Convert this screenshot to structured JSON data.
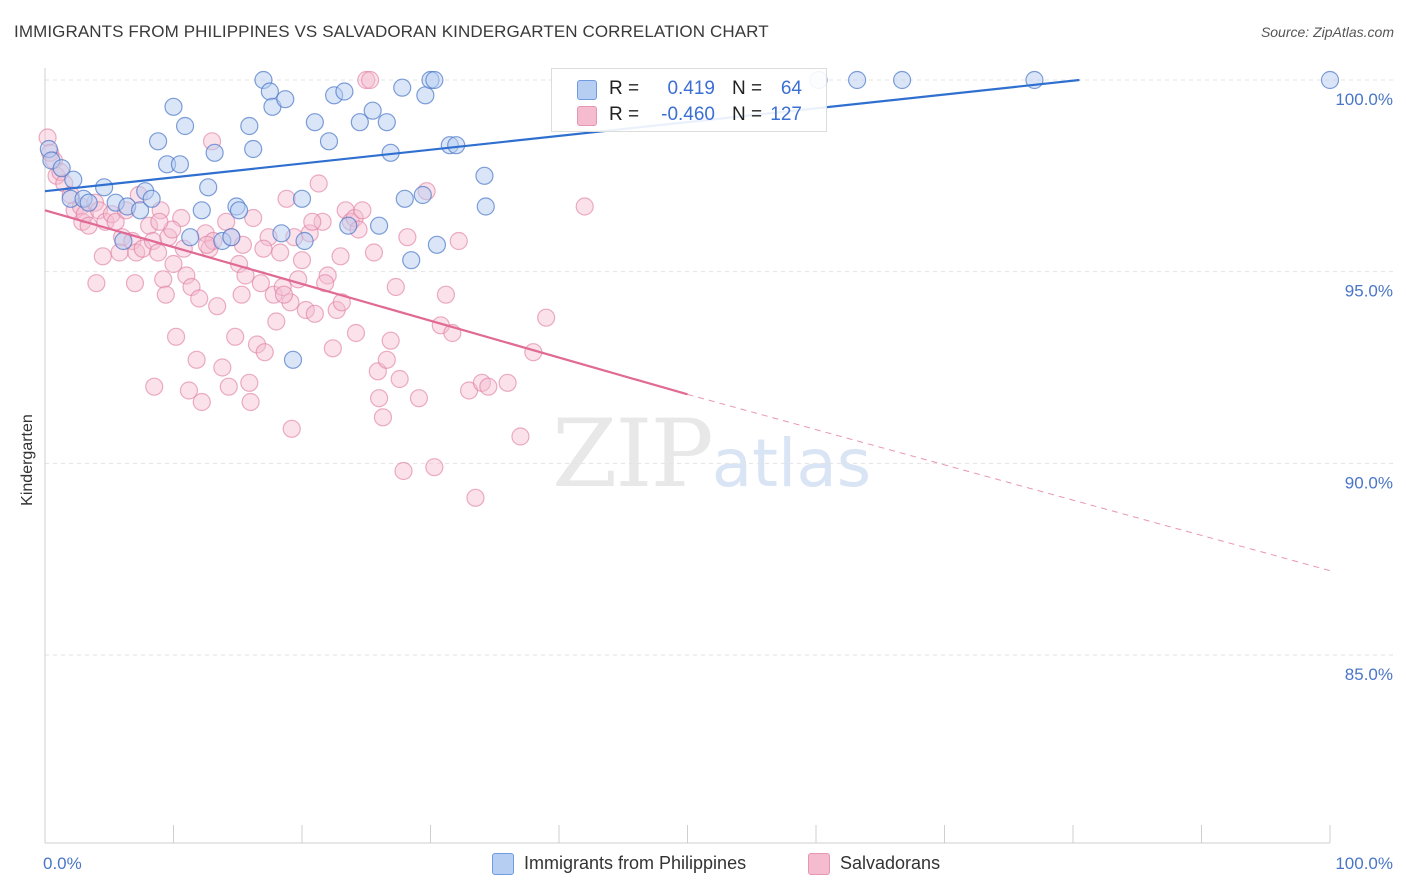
{
  "header": {
    "title": "IMMIGRANTS FROM PHILIPPINES VS SALVADORAN KINDERGARTEN CORRELATION CHART",
    "source": "Source: ZipAtlas.com"
  },
  "watermark": {
    "zip": "ZIP",
    "atlas": "atlas"
  },
  "legend": {
    "rows": [
      {
        "r_label": "R =",
        "r_value": "0.419",
        "n_label": "N =",
        "n_value": "64"
      },
      {
        "r_label": "R =",
        "r_value": "-0.460",
        "n_label": "N =",
        "n_value": "127"
      }
    ],
    "bottom": [
      "Immigrants from Philippines",
      "Salvadorans"
    ]
  },
  "colors": {
    "blue": "#4a76c7",
    "blue_fill": "#b5cef2",
    "blue_line": "#2f6fd0",
    "pink": "#e07a9e",
    "pink_fill": "#f5bcd0",
    "pink_line": "#e06a93",
    "value_text": "#3b6fd4"
  },
  "chart_data": {
    "type": "scatter",
    "title": "IMMIGRANTS FROM PHILIPPINES VS SALVADORAN KINDERGARTEN CORRELATION CHART",
    "xlabel": "",
    "ylabel": "Kindergarten",
    "xlim": [
      0,
      100
    ],
    "ylim": [
      80.5,
      100.8
    ],
    "x_tick_labels": [
      "0.0%",
      "100.0%"
    ],
    "y_ticks": [
      {
        "value": 100,
        "label": "100.0%"
      },
      {
        "value": 95,
        "label": "95.0%"
      },
      {
        "value": 90,
        "label": "90.0%"
      },
      {
        "value": 85,
        "label": "85.0%"
      }
    ],
    "grid": true,
    "series": [
      {
        "name": "Immigrants from Philippines",
        "r": 0.419,
        "n": 64,
        "trend": {
          "x0": 0,
          "y0": 97.1,
          "x1": 80.5,
          "y1": 100.0
        },
        "points": [
          [
            0.3,
            98.2
          ],
          [
            0.5,
            97.9
          ],
          [
            1.3,
            97.7
          ],
          [
            2.2,
            97.4
          ],
          [
            2.0,
            96.9
          ],
          [
            3.0,
            96.9
          ],
          [
            3.4,
            96.8
          ],
          [
            4.6,
            97.2
          ],
          [
            5.5,
            96.8
          ],
          [
            6.4,
            96.7
          ],
          [
            7.4,
            96.6
          ],
          [
            7.8,
            97.1
          ],
          [
            8.3,
            96.9
          ],
          [
            6.1,
            95.8
          ],
          [
            8.8,
            98.4
          ],
          [
            9.5,
            97.8
          ],
          [
            10.0,
            99.3
          ],
          [
            10.5,
            97.8
          ],
          [
            10.9,
            98.8
          ],
          [
            11.3,
            95.9
          ],
          [
            12.2,
            96.6
          ],
          [
            12.7,
            97.2
          ],
          [
            13.2,
            98.1
          ],
          [
            13.8,
            95.8
          ],
          [
            14.5,
            95.9
          ],
          [
            14.9,
            96.7
          ],
          [
            15.1,
            96.6
          ],
          [
            15.9,
            98.8
          ],
          [
            16.2,
            98.2
          ],
          [
            17.0,
            100.0
          ],
          [
            17.5,
            99.7
          ],
          [
            17.7,
            99.3
          ],
          [
            18.7,
            99.5
          ],
          [
            18.4,
            96.0
          ],
          [
            19.3,
            92.7
          ],
          [
            20.0,
            96.9
          ],
          [
            20.2,
            95.8
          ],
          [
            21.0,
            98.9
          ],
          [
            22.1,
            98.4
          ],
          [
            22.5,
            99.6
          ],
          [
            23.3,
            99.7
          ],
          [
            23.6,
            96.2
          ],
          [
            24.5,
            98.9
          ],
          [
            25.5,
            99.2
          ],
          [
            26.0,
            96.2
          ],
          [
            26.6,
            98.9
          ],
          [
            26.9,
            98.1
          ],
          [
            27.8,
            99.8
          ],
          [
            28.5,
            95.3
          ],
          [
            28.0,
            96.9
          ],
          [
            29.6,
            99.6
          ],
          [
            29.4,
            97.0
          ],
          [
            30.0,
            100.0
          ],
          [
            30.3,
            100.0
          ],
          [
            30.5,
            95.7
          ],
          [
            31.5,
            98.3
          ],
          [
            32.0,
            98.3
          ],
          [
            34.2,
            97.5
          ],
          [
            34.3,
            96.7
          ],
          [
            60.2,
            100.0
          ],
          [
            63.2,
            100.0
          ],
          [
            66.7,
            100.0
          ],
          [
            77.0,
            100.0
          ],
          [
            100.0,
            100.0
          ]
        ]
      },
      {
        "name": "Salvadorans",
        "r": -0.46,
        "n": 127,
        "trend": {
          "x0": 0,
          "y0": 96.6,
          "x1": 50.0,
          "y1": 91.8,
          "x_dash_end": 100.0,
          "y_dash_end": 87.2
        },
        "points": [
          [
            0.2,
            98.5
          ],
          [
            0.4,
            98.1
          ],
          [
            0.7,
            97.9
          ],
          [
            0.9,
            97.5
          ],
          [
            1.2,
            97.6
          ],
          [
            1.5,
            97.3
          ],
          [
            2.0,
            97.0
          ],
          [
            2.3,
            96.6
          ],
          [
            2.8,
            96.7
          ],
          [
            2.9,
            96.3
          ],
          [
            3.1,
            96.5
          ],
          [
            3.4,
            96.2
          ],
          [
            3.9,
            96.8
          ],
          [
            4.2,
            96.6
          ],
          [
            4.5,
            95.4
          ],
          [
            4.7,
            96.3
          ],
          [
            5.2,
            96.5
          ],
          [
            5.5,
            96.3
          ],
          [
            6.0,
            95.9
          ],
          [
            6.3,
            96.6
          ],
          [
            6.8,
            95.8
          ],
          [
            7.1,
            95.5
          ],
          [
            7.3,
            97.0
          ],
          [
            7.6,
            95.6
          ],
          [
            8.1,
            96.2
          ],
          [
            8.4,
            95.8
          ],
          [
            8.8,
            95.5
          ],
          [
            9.0,
            96.6
          ],
          [
            9.2,
            94.8
          ],
          [
            9.4,
            94.4
          ],
          [
            9.6,
            95.9
          ],
          [
            10.0,
            95.2
          ],
          [
            10.2,
            93.3
          ],
          [
            10.6,
            96.4
          ],
          [
            10.8,
            95.6
          ],
          [
            11.0,
            94.9
          ],
          [
            11.4,
            94.6
          ],
          [
            11.8,
            92.7
          ],
          [
            12.0,
            94.3
          ],
          [
            12.2,
            91.6
          ],
          [
            12.5,
            96.0
          ],
          [
            12.8,
            95.6
          ],
          [
            13.1,
            95.8
          ],
          [
            13.4,
            94.1
          ],
          [
            13.8,
            92.5
          ],
          [
            14.1,
            96.3
          ],
          [
            14.5,
            95.9
          ],
          [
            14.8,
            93.3
          ],
          [
            15.1,
            95.2
          ],
          [
            15.3,
            94.4
          ],
          [
            15.6,
            94.9
          ],
          [
            15.9,
            92.1
          ],
          [
            16.2,
            96.4
          ],
          [
            16.5,
            93.1
          ],
          [
            16.8,
            94.7
          ],
          [
            17.1,
            92.9
          ],
          [
            17.4,
            95.9
          ],
          [
            17.8,
            94.4
          ],
          [
            18.0,
            93.7
          ],
          [
            18.3,
            95.5
          ],
          [
            18.5,
            94.6
          ],
          [
            18.8,
            96.9
          ],
          [
            19.1,
            94.2
          ],
          [
            19.4,
            95.9
          ],
          [
            19.7,
            94.8
          ],
          [
            20.0,
            95.3
          ],
          [
            20.3,
            94.0
          ],
          [
            20.6,
            96.0
          ],
          [
            21.0,
            93.9
          ],
          [
            21.3,
            97.3
          ],
          [
            21.6,
            96.3
          ],
          [
            22.0,
            94.9
          ],
          [
            22.4,
            93.0
          ],
          [
            22.7,
            94.0
          ],
          [
            23.1,
            94.2
          ],
          [
            23.4,
            96.6
          ],
          [
            23.8,
            96.3
          ],
          [
            24.1,
            96.4
          ],
          [
            24.4,
            96.1
          ],
          [
            24.7,
            96.6
          ],
          [
            25.0,
            100.0
          ],
          [
            25.3,
            100.0
          ],
          [
            25.6,
            95.5
          ],
          [
            25.9,
            92.4
          ],
          [
            26.3,
            91.2
          ],
          [
            26.6,
            92.7
          ],
          [
            26.9,
            93.2
          ],
          [
            27.3,
            94.6
          ],
          [
            27.6,
            92.2
          ],
          [
            27.9,
            89.8
          ],
          [
            28.2,
            95.9
          ],
          [
            29.1,
            91.7
          ],
          [
            29.7,
            97.1
          ],
          [
            30.3,
            89.9
          ],
          [
            30.8,
            93.6
          ],
          [
            31.2,
            94.4
          ],
          [
            31.7,
            93.4
          ],
          [
            32.2,
            95.8
          ],
          [
            33.0,
            91.9
          ],
          [
            33.5,
            89.1
          ],
          [
            34.0,
            92.1
          ],
          [
            34.5,
            92.0
          ],
          [
            36.0,
            92.1
          ],
          [
            37.0,
            90.7
          ],
          [
            38.0,
            92.9
          ],
          [
            39.0,
            93.8
          ],
          [
            42.0,
            96.7
          ],
          [
            8.5,
            92.0
          ],
          [
            9.9,
            96.1
          ],
          [
            11.2,
            91.9
          ],
          [
            13.0,
            98.4
          ],
          [
            14.3,
            92.0
          ],
          [
            16.0,
            91.6
          ],
          [
            19.2,
            90.9
          ],
          [
            21.8,
            94.7
          ],
          [
            23.0,
            95.4
          ],
          [
            24.2,
            93.4
          ],
          [
            26.0,
            91.7
          ],
          [
            4.0,
            94.7
          ],
          [
            5.8,
            95.5
          ],
          [
            7.0,
            94.7
          ],
          [
            8.9,
            96.3
          ],
          [
            12.6,
            95.7
          ],
          [
            15.4,
            95.7
          ],
          [
            17.0,
            95.6
          ],
          [
            18.6,
            94.4
          ],
          [
            20.8,
            96.3
          ]
        ]
      }
    ]
  }
}
